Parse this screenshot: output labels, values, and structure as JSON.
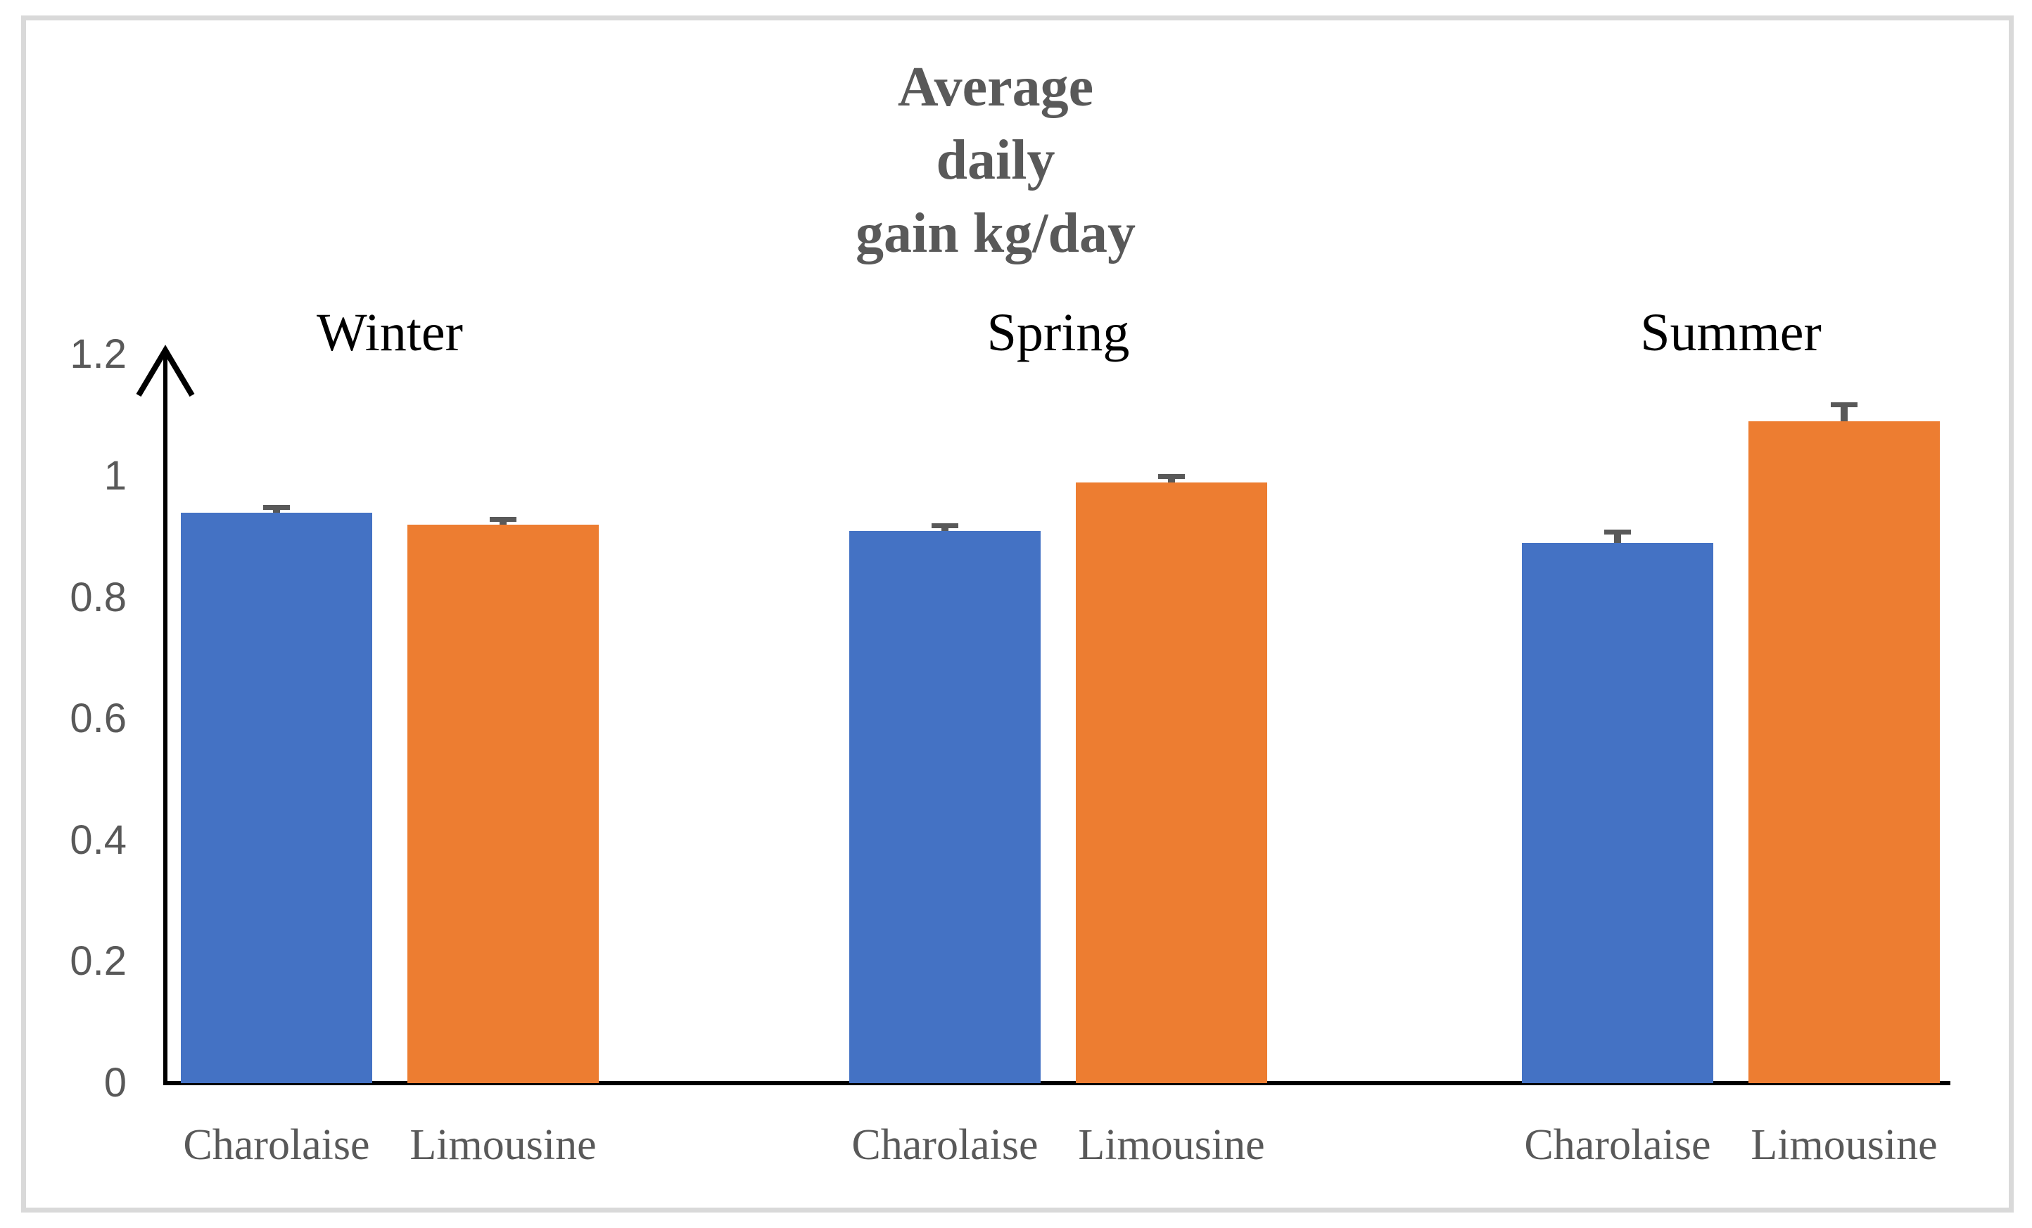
{
  "figure": {
    "background": "#FFFFFF",
    "border_color": "#D9D9D9"
  },
  "chart_data": {
    "type": "bar",
    "title": "Average daily gain kg/day",
    "title_lines": [
      "Average",
      "daily",
      "gain kg/day"
    ],
    "title_color": "#595959",
    "ylabel": "",
    "xlabel": "",
    "ylim": [
      0,
      1.2
    ],
    "grid": false,
    "legend": "none",
    "axis_color": "#000000",
    "tick_label_color": "#595959",
    "season_label_color": "#000000",
    "category_label_color": "#595959",
    "error_bar_color": "#595959",
    "series_colors": {
      "Charolaise": "#4472C4",
      "Limousine": "#ED7D31"
    },
    "yticks": [
      {
        "value": 0,
        "label": "0"
      },
      {
        "value": 0.2,
        "label": "0.2"
      },
      {
        "value": 0.4,
        "label": "0.4"
      },
      {
        "value": 0.6,
        "label": "0.6"
      },
      {
        "value": 0.8,
        "label": "0.8"
      },
      {
        "value": 1,
        "label": "1"
      },
      {
        "value": 1.2,
        "label": "1.2"
      }
    ],
    "groups": [
      {
        "season": "Winter",
        "bars": [
          {
            "breed": "Charolaise",
            "value": 0.94,
            "error": 0.012,
            "color": "#4472C4"
          },
          {
            "breed": "Limousine",
            "value": 0.92,
            "error": 0.013,
            "color": "#ED7D31"
          }
        ]
      },
      {
        "season": "Spring",
        "bars": [
          {
            "breed": "Charolaise",
            "value": 0.91,
            "error": 0.012,
            "color": "#4472C4"
          },
          {
            "breed": "Limousine",
            "value": 0.99,
            "error": 0.014,
            "color": "#ED7D31"
          }
        ]
      },
      {
        "season": "Summer",
        "bars": [
          {
            "breed": "Charolaise",
            "value": 0.89,
            "error": 0.022,
            "color": "#4472C4"
          },
          {
            "breed": "Limousine",
            "value": 1.09,
            "error": 0.032,
            "color": "#ED7D31"
          }
        ]
      }
    ]
  }
}
